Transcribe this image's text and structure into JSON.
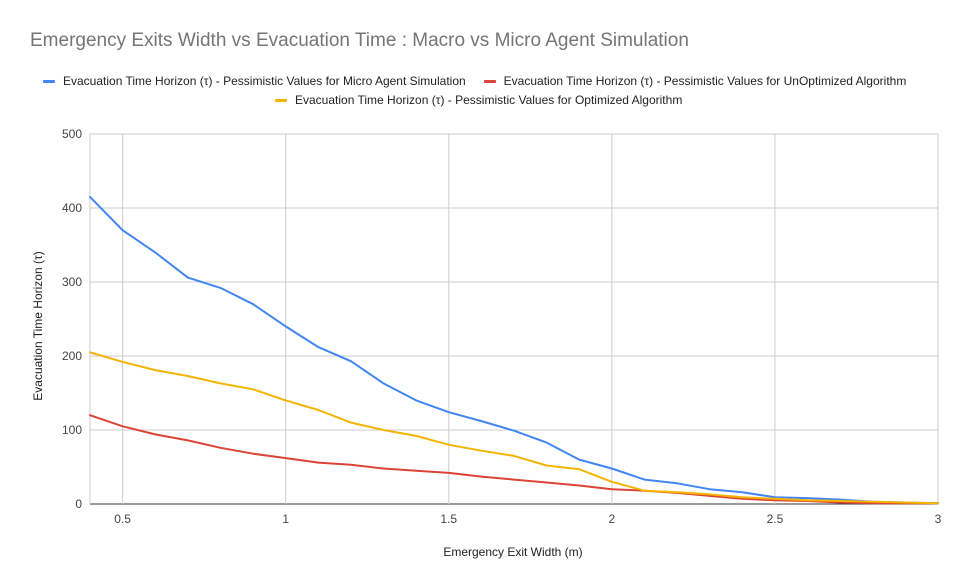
{
  "chart_data": {
    "type": "line",
    "title": "Emergency Exits Width vs Evacuation Time : Macro vs Micro Agent Simulation",
    "xlabel": "Emergency Exit Width (m)",
    "ylabel": "Evacuation Time Horizon (τ)",
    "xlim": [
      0.4,
      3.0
    ],
    "ylim": [
      0,
      500
    ],
    "x_ticks": [
      0.5,
      1,
      1.5,
      2,
      2.5,
      3
    ],
    "x_tick_labels": [
      "0.5",
      "1",
      "1.5",
      "2",
      "2.5",
      "3"
    ],
    "y_ticks": [
      0,
      100,
      200,
      300,
      400,
      500
    ],
    "y_tick_labels": [
      "0",
      "100",
      "200",
      "300",
      "400",
      "500"
    ],
    "grid": true,
    "legend_position": "top",
    "x": [
      0.4,
      0.5,
      0.6,
      0.7,
      0.8,
      0.9,
      1.0,
      1.1,
      1.2,
      1.3,
      1.4,
      1.5,
      1.6,
      1.7,
      1.8,
      1.9,
      2.0,
      2.1,
      2.2,
      2.3,
      2.4,
      2.5,
      2.6,
      2.7,
      2.8,
      2.9,
      3.0
    ],
    "series": [
      {
        "name": "Evacuation Time Horizon (τ) - Pessimistic Values for Micro Agent Simulation",
        "color": "#4285f4",
        "values": [
          415,
          370,
          340,
          306,
          292,
          270,
          240,
          212,
          193,
          163,
          140,
          124,
          112,
          99,
          83,
          60,
          48,
          33,
          28,
          20,
          16,
          9,
          8,
          6,
          3,
          2,
          1
        ]
      },
      {
        "name": "Evacuation Time Horizon (τ) - Pessimistic Values for UnOptimized Algorithm",
        "color": "#db4437",
        "values": [
          120,
          105,
          94,
          86,
          76,
          68,
          62,
          56,
          53,
          48,
          45,
          42,
          37,
          33,
          29,
          25,
          20,
          18,
          15,
          11,
          7,
          5,
          4,
          2,
          1,
          1,
          1
        ]
      },
      {
        "name": "Evacuation Time Horizon (τ) - Pessimistic Values for Optimized Algorithm",
        "color": "#f4b400",
        "values": [
          205,
          192,
          181,
          173,
          163,
          155,
          140,
          127,
          110,
          100,
          92,
          80,
          72,
          65,
          52,
          47,
          30,
          18,
          16,
          13,
          9,
          7,
          5,
          4,
          3,
          2,
          1
        ]
      }
    ]
  }
}
